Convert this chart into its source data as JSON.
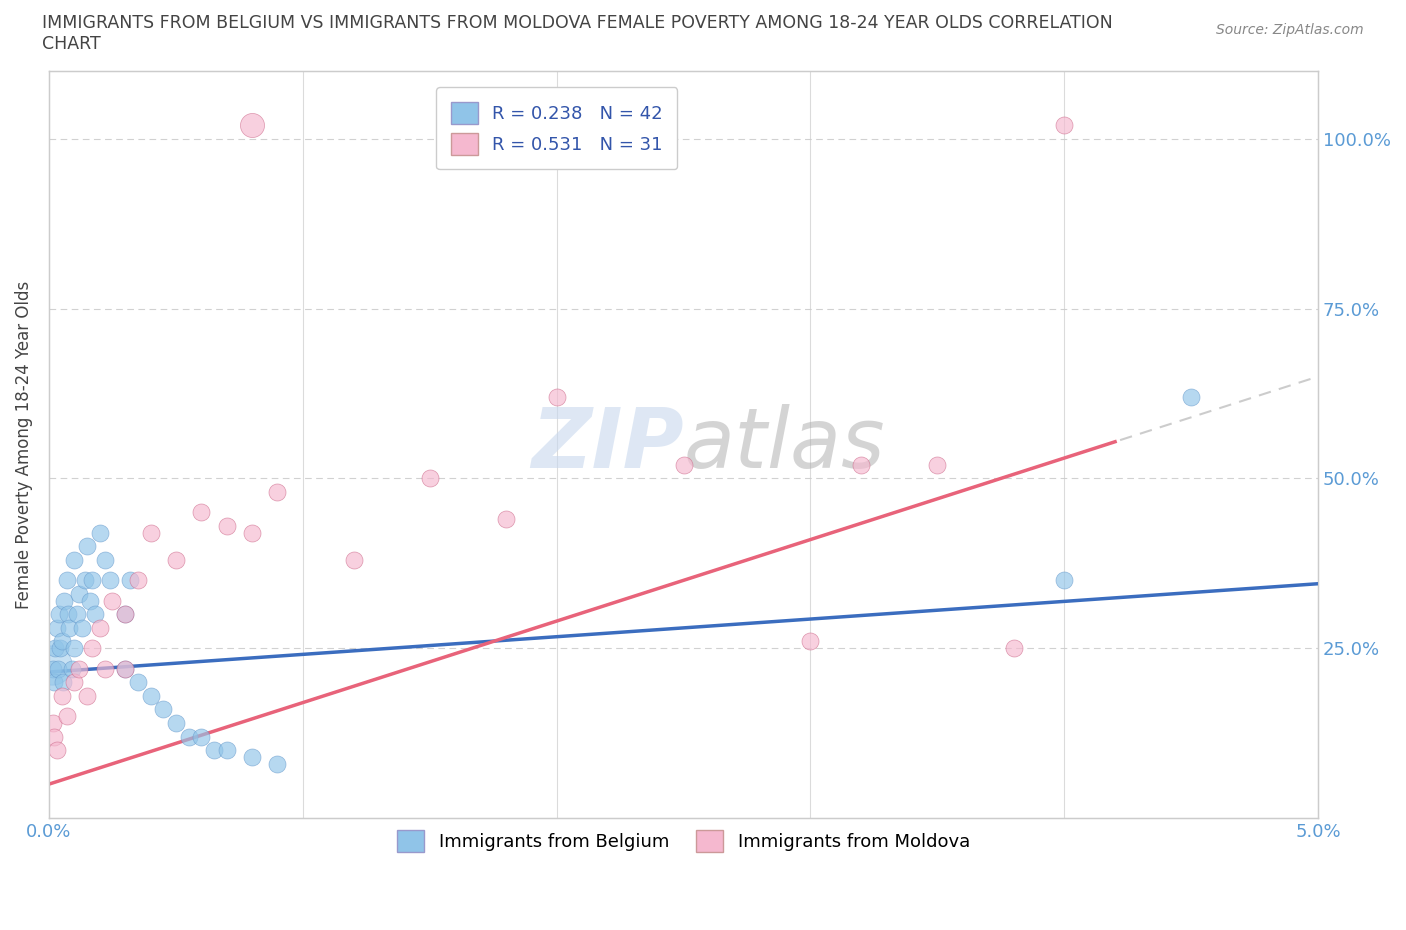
{
  "title_line1": "IMMIGRANTS FROM BELGIUM VS IMMIGRANTS FROM MOLDOVA FEMALE POVERTY AMONG 18-24 YEAR OLDS CORRELATION",
  "title_line2": "CHART",
  "source_text": "Source: ZipAtlas.com",
  "ylabel": "Female Poverty Among 18-24 Year Olds",
  "xlim": [
    0.0,
    0.05
  ],
  "ylim": [
    0.0,
    1.1
  ],
  "x_ticks": [
    0.0,
    0.01,
    0.02,
    0.03,
    0.04,
    0.05
  ],
  "x_tick_labels": [
    "0.0%",
    "",
    "",
    "",
    "",
    "5.0%"
  ],
  "y_ticks": [
    0.0,
    0.25,
    0.5,
    0.75,
    1.0
  ],
  "y_tick_labels_right": [
    "",
    "25.0%",
    "50.0%",
    "75.0%",
    "100.0%"
  ],
  "belgium_color": "#90C4E8",
  "moldova_color": "#F5B8CF",
  "belgium_line_color": "#3B6DBF",
  "moldova_line_color": "#E8637A",
  "dash_line_color": "#C0C0C0",
  "belgium_R": 0.238,
  "belgium_N": 42,
  "moldova_R": 0.531,
  "moldova_N": 31,
  "watermark_zip": "ZIP",
  "watermark_atlas": "atlas",
  "grid_color": "#CCCCCC",
  "background_color": "#FFFFFF",
  "tick_color": "#5B9BD5",
  "title_color": "#444444",
  "belgium_x": [
    0.00015,
    0.0002,
    0.00025,
    0.0003,
    0.00035,
    0.0004,
    0.00045,
    0.0005,
    0.00055,
    0.0006,
    0.0007,
    0.00075,
    0.0008,
    0.0009,
    0.001,
    0.001,
    0.0011,
    0.0012,
    0.0013,
    0.0014,
    0.0015,
    0.0016,
    0.0017,
    0.0018,
    0.002,
    0.0022,
    0.0024,
    0.003,
    0.003,
    0.0032,
    0.0035,
    0.004,
    0.0045,
    0.005,
    0.0055,
    0.006,
    0.0065,
    0.007,
    0.008,
    0.009,
    0.04,
    0.045
  ],
  "belgium_y": [
    0.22,
    0.2,
    0.25,
    0.28,
    0.22,
    0.3,
    0.25,
    0.26,
    0.2,
    0.32,
    0.35,
    0.3,
    0.28,
    0.22,
    0.25,
    0.38,
    0.3,
    0.33,
    0.28,
    0.35,
    0.4,
    0.32,
    0.35,
    0.3,
    0.42,
    0.38,
    0.35,
    0.3,
    0.22,
    0.35,
    0.2,
    0.18,
    0.16,
    0.14,
    0.12,
    0.12,
    0.1,
    0.1,
    0.09,
    0.08,
    0.35,
    0.62
  ],
  "moldova_x": [
    0.00015,
    0.0002,
    0.0003,
    0.0005,
    0.0007,
    0.001,
    0.0012,
    0.0015,
    0.0017,
    0.002,
    0.0022,
    0.0025,
    0.003,
    0.003,
    0.0035,
    0.004,
    0.005,
    0.006,
    0.007,
    0.008,
    0.009,
    0.012,
    0.015,
    0.018,
    0.02,
    0.025,
    0.03,
    0.032,
    0.035,
    0.038,
    0.04
  ],
  "moldova_y": [
    0.14,
    0.12,
    0.1,
    0.18,
    0.15,
    0.2,
    0.22,
    0.18,
    0.25,
    0.28,
    0.22,
    0.32,
    0.3,
    0.22,
    0.35,
    0.42,
    0.38,
    0.45,
    0.43,
    0.42,
    0.48,
    0.38,
    0.5,
    0.44,
    0.62,
    0.52,
    0.26,
    0.52,
    0.52,
    0.25,
    1.02
  ]
}
